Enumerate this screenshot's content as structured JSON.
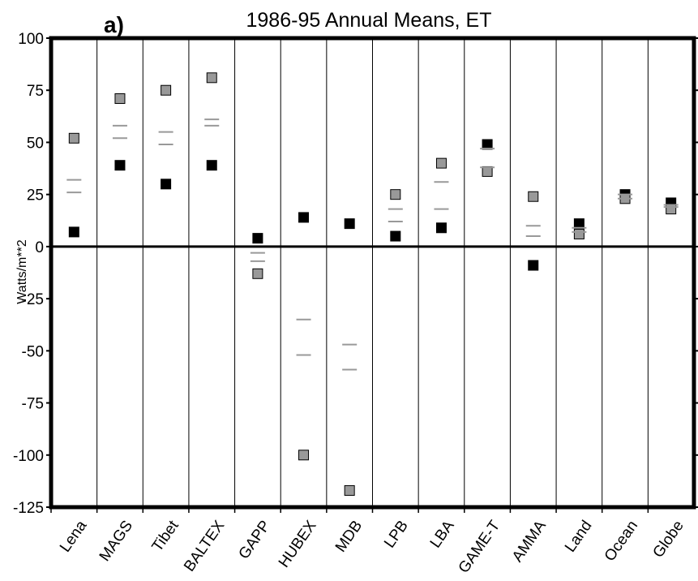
{
  "chart_data": {
    "type": "scatter",
    "panel_label": "a)",
    "title": "1986-95 Annual Means, ET",
    "xlabel": "",
    "ylabel": "Watts/m**2",
    "ylim": [
      -125,
      100
    ],
    "yticks": [
      100,
      75,
      50,
      25,
      0,
      -25,
      -50,
      -75,
      -100,
      -125
    ],
    "grid": "vertical separators between categories",
    "categories": [
      "Lena",
      "MAGS",
      "Tibet",
      "BALTEX",
      "GAPP",
      "HUBEX",
      "MDB",
      "LPB",
      "LBA",
      "GAME-T",
      "AMMA",
      "Land",
      "Ocean",
      "Globe"
    ],
    "series": [
      {
        "marker": "filled-square",
        "color": "#000000",
        "values": [
          7,
          39,
          30,
          39,
          4,
          14,
          11,
          5,
          9,
          49,
          -9,
          11,
          25,
          21
        ]
      },
      {
        "marker": "filled-square",
        "color": "#999999",
        "values": [
          52,
          71,
          75,
          81,
          -13,
          -100,
          -117,
          25,
          40,
          36,
          24,
          6,
          23,
          18
        ]
      },
      {
        "marker": "dash",
        "color": "#999999",
        "values": [
          32,
          58,
          55,
          61,
          -3,
          -35,
          -47,
          18,
          31,
          47,
          10,
          9,
          25,
          20
        ]
      },
      {
        "marker": "dash",
        "color": "#999999",
        "values": [
          26,
          52,
          49,
          58,
          -7,
          -52,
          -59,
          12,
          18,
          38,
          5,
          7,
          23,
          19
        ]
      }
    ]
  }
}
